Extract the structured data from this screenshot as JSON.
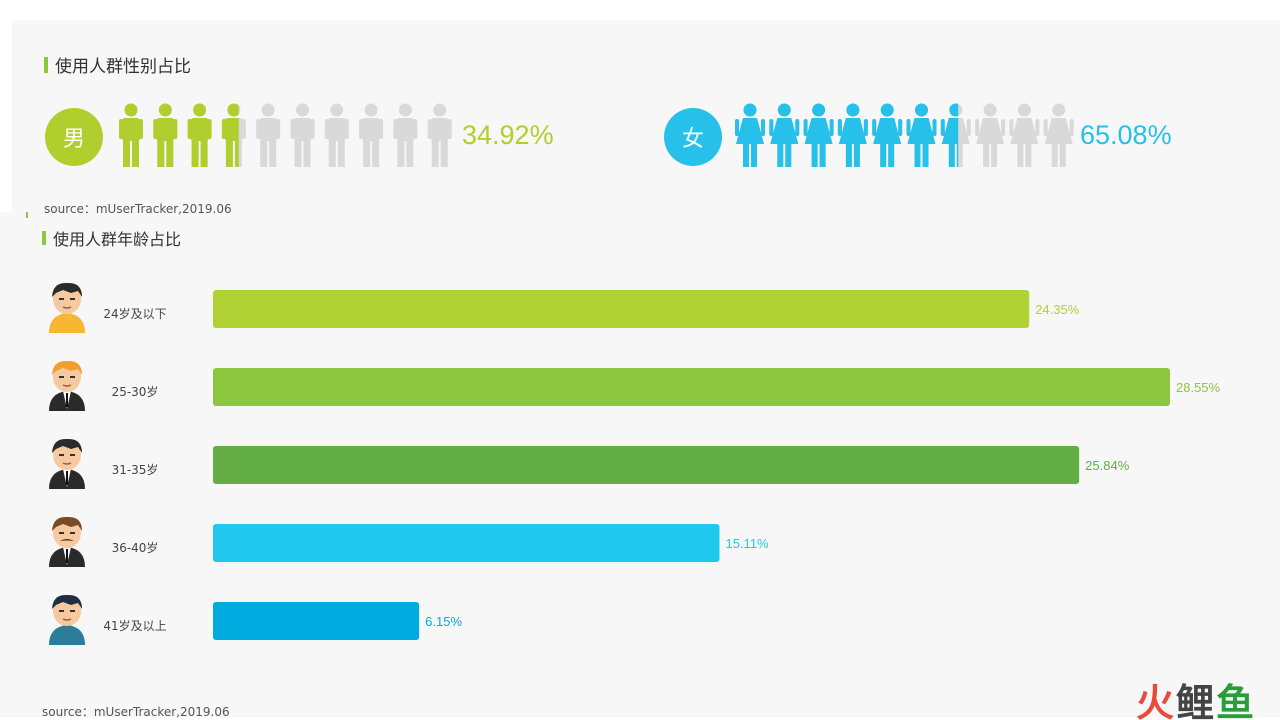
{
  "sections": {
    "gender_title": "使用人群性别占比",
    "age_title": "使用人群年龄占比",
    "gender_source": "source：mUserTracker,2019.06",
    "age_source": "source：mUserTracker,2019.06"
  },
  "gender": {
    "male_label": "男",
    "male_pct": "34.92%",
    "male_value": 34.92,
    "female_label": "女",
    "female_pct": "65.08%",
    "female_value": 65.08,
    "figure_count": 10,
    "male_color": "#b0cf2e",
    "female_color": "#26c0ea",
    "inactive_color": "#d9d9d9"
  },
  "chart_data": {
    "type": "bar",
    "orientation": "horizontal",
    "categories": [
      "24岁及以下",
      "25-30岁",
      "31-35岁",
      "36-40岁",
      "41岁及以上"
    ],
    "values": [
      24.35,
      28.55,
      25.84,
      15.11,
      6.15
    ],
    "labels": [
      "24.35%",
      "28.55%",
      "25.84%",
      "15.11%",
      "6.15%"
    ],
    "colors": [
      "#b1d234",
      "#8cc63f",
      "#63ae44",
      "#20c8f0",
      "#00abe0"
    ],
    "grid": false,
    "legend": "none"
  },
  "avatars": [
    "boy-avatar-icon",
    "blond-man-avatar-icon",
    "suited-man-avatar-icon",
    "mustache-man-avatar-icon",
    "older-man-avatar-icon"
  ],
  "watermark": {
    "c1": "火",
    "c2": "鲤",
    "c3": "鱼"
  }
}
